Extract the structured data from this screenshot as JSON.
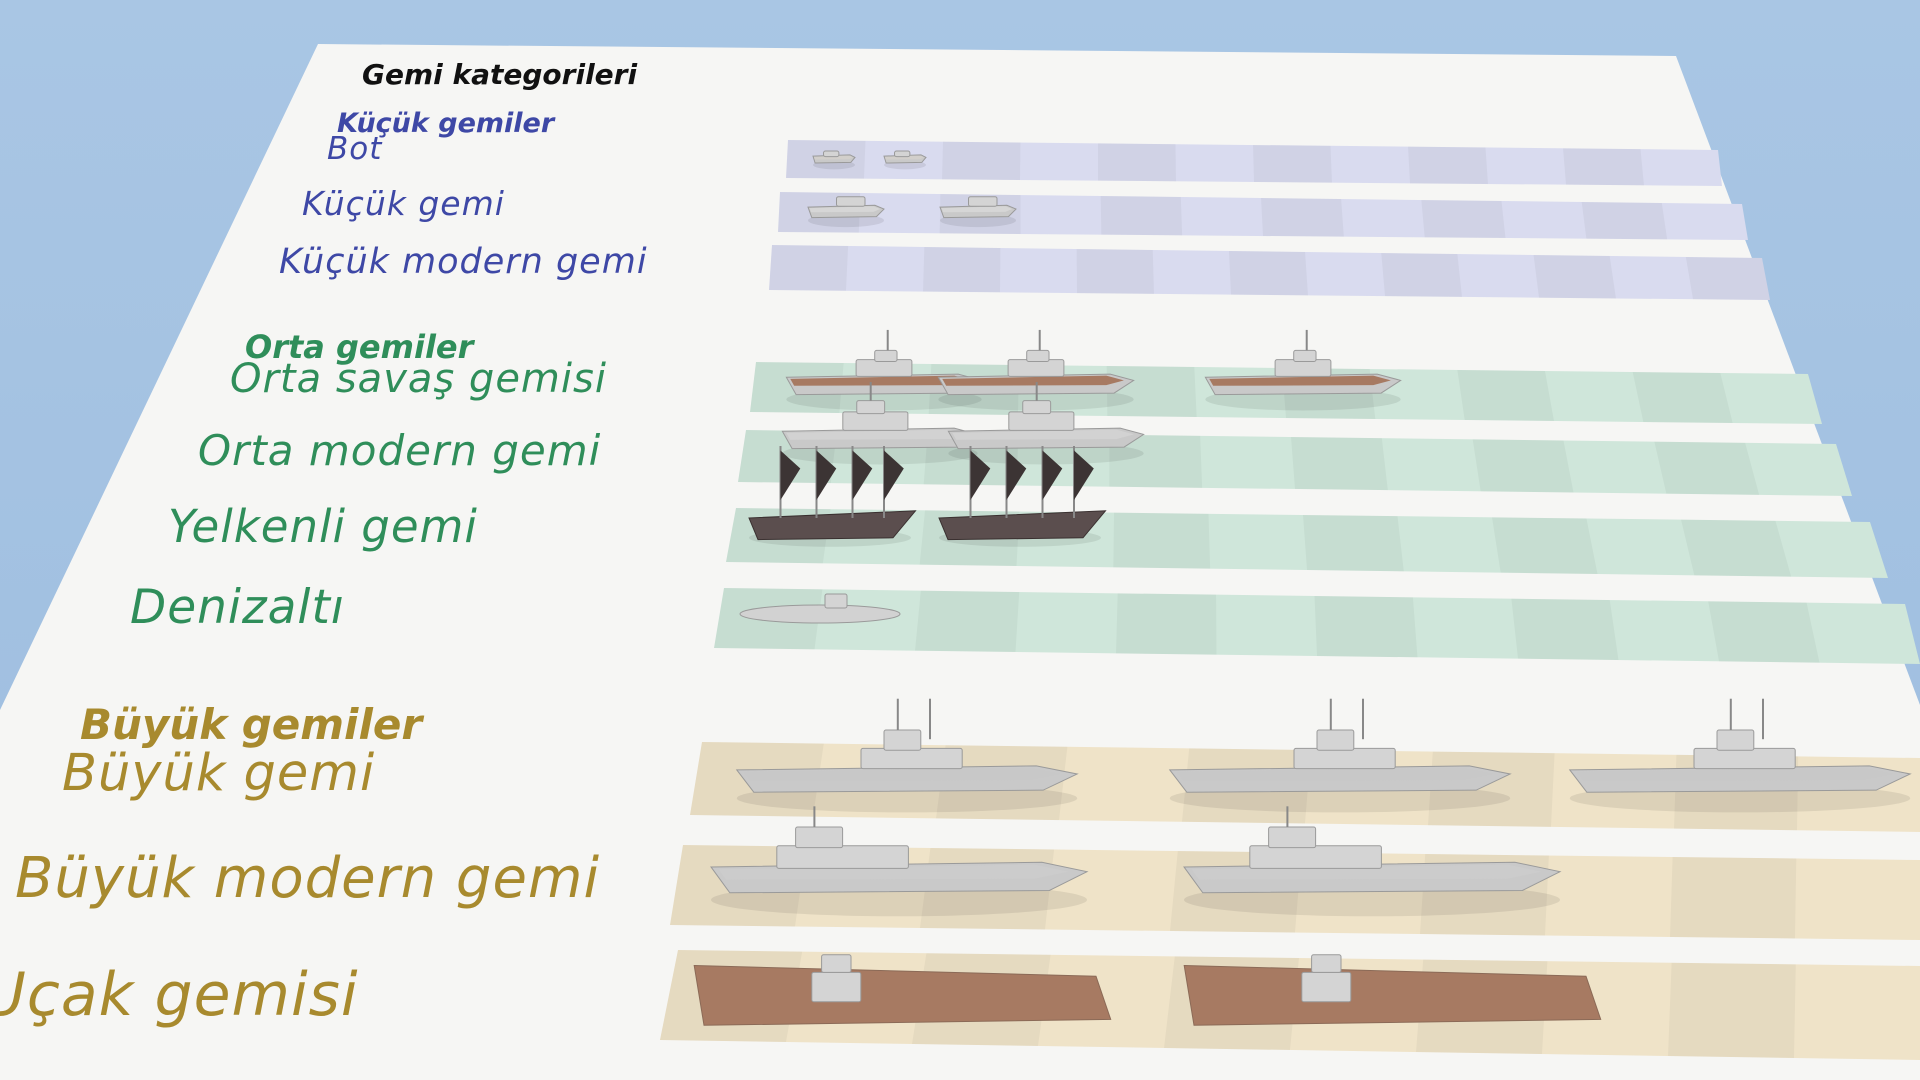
{
  "title": "Gemi kategorileri",
  "groups": [
    {
      "name": "Küçük gemiler",
      "color": "#3e48a6",
      "rows": [
        {
          "label": "Bot",
          "ships": [
            "small-boat",
            "small-boat"
          ]
        },
        {
          "label": "Küçük gemi",
          "ships": [
            "small-ship",
            "small-ship"
          ]
        },
        {
          "label": "Küçük modern gemi",
          "ships": []
        }
      ]
    },
    {
      "name": "Orta gemiler",
      "color": "#2f8e5a",
      "rows": [
        {
          "label": "Orta savaş gemisi",
          "ships": [
            "medium-warship",
            "medium-warship",
            "medium-warship"
          ]
        },
        {
          "label": "Orta modern gemi",
          "ships": [
            "medium-modern-ship",
            "medium-modern-ship"
          ]
        },
        {
          "label": "Yelkenli gemi",
          "ships": [
            "sailing-ship",
            "sailing-ship"
          ]
        },
        {
          "label": "Denizaltı",
          "ships": [
            "submarine"
          ]
        }
      ]
    },
    {
      "name": "Büyük gemiler",
      "color": "#a88a2e",
      "rows": [
        {
          "label": "Büyük gemi",
          "ships": [
            "battleship",
            "battleship",
            "battleship"
          ]
        },
        {
          "label": "Büyük modern gemi",
          "ships": [
            "modern-battleship",
            "modern-battleship"
          ]
        },
        {
          "label": "Uçak gemisi",
          "ships": [
            "aircraft-carrier",
            "aircraft-carrier"
          ]
        }
      ]
    }
  ],
  "colors": {
    "background": "#a9c6e4",
    "sheet": "#f6f6f4",
    "small_band": "#d9dbef",
    "mid_band": "#cfe6da",
    "big_band": "#efe3c8",
    "hull": "#c9c9c9",
    "deck": "#a77a62"
  }
}
